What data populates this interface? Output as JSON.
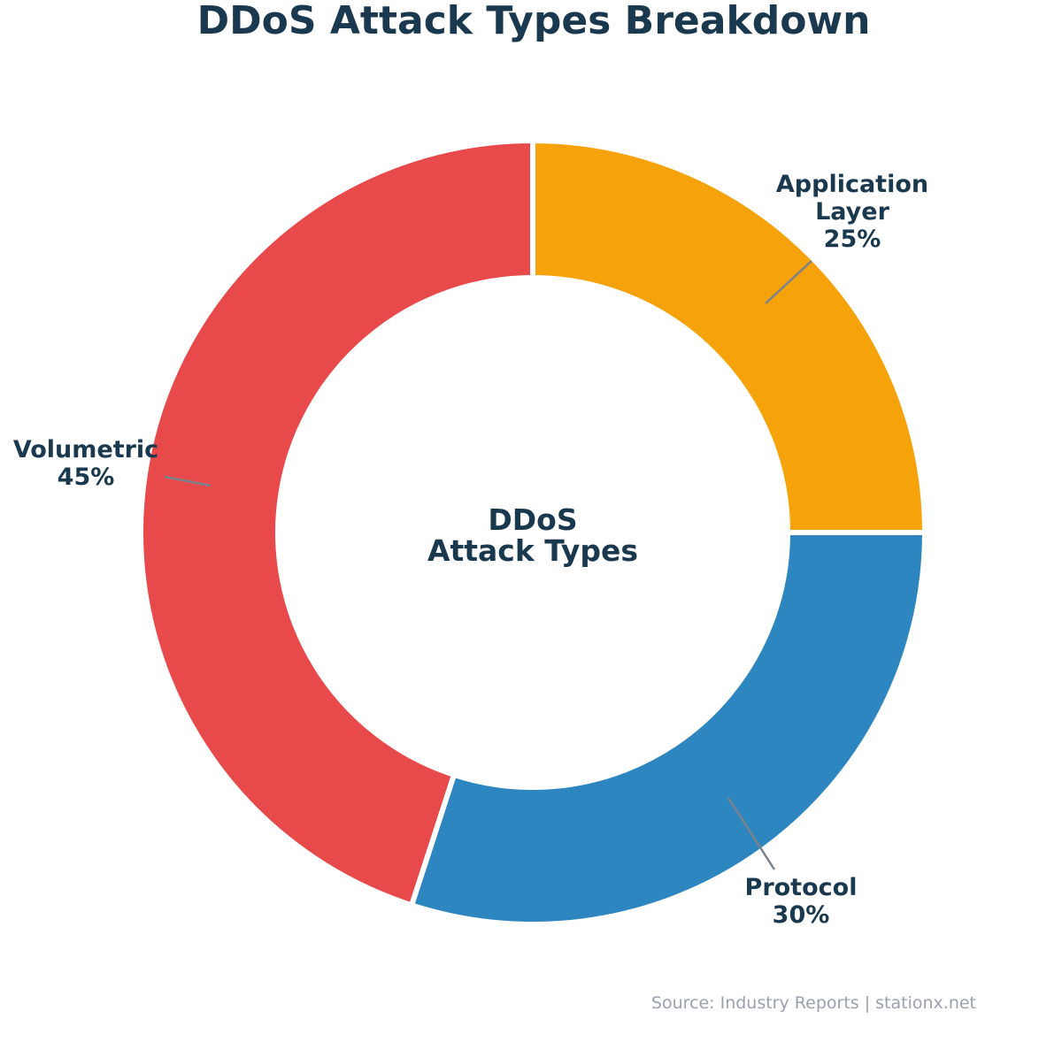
{
  "title": "DDoS Attack Types Breakdown",
  "source": "Source: Industry Reports | stationx.net",
  "chart_data": {
    "type": "pie",
    "subtype": "donut",
    "title": "DDoS Attack Types Breakdown",
    "center_label_lines": [
      "DDoS",
      "Attack Types"
    ],
    "start_angle": "12-oclock",
    "direction": "clockwise",
    "unit": "percent",
    "categories": [
      "Application Layer",
      "Protocol",
      "Volumetric"
    ],
    "values": [
      25,
      30,
      45
    ],
    "slices": [
      {
        "name": "Application Layer",
        "value": 25,
        "pct_label": "25%",
        "color": "#F5A20B",
        "label_lines": [
          "Application",
          "Layer",
          "25%"
        ]
      },
      {
        "name": "Protocol",
        "value": 30,
        "pct_label": "30%",
        "color": "#2E86C1",
        "label_lines": [
          "Protocol",
          "30%"
        ]
      },
      {
        "name": "Volumetric",
        "value": 45,
        "pct_label": "45%",
        "color": "#E8494B",
        "label_lines": [
          "Volumetric",
          "45%"
        ]
      }
    ],
    "colors": {
      "title_text": "#1A384E",
      "label_text": "#1A384E",
      "leader_line": "#7B828B",
      "source_text": "#9AA1AE",
      "background": "#FFFFFF",
      "slice_gap": "#FFFFFF"
    },
    "legend": "none"
  }
}
